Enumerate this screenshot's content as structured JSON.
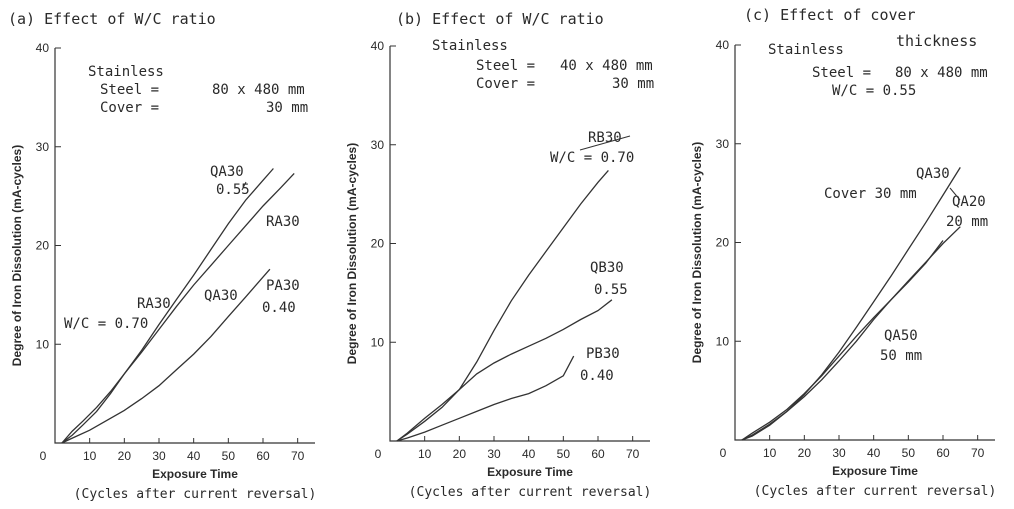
{
  "chart_data": [
    {
      "type": "line",
      "title": "(a) Effect of W/C ratio",
      "xlabel": "Exposure Time",
      "xsublabel": "(Cycles after current reversal)",
      "ylabel": "Degree of Iron Dissolution (mA-cycles)",
      "xlim": [
        0,
        75
      ],
      "ylim": [
        0,
        40
      ],
      "xticks": [
        "0",
        "10",
        "20",
        "30",
        "40",
        "50",
        "60",
        "70"
      ],
      "yticks": [
        "10",
        "20",
        "30",
        "40"
      ],
      "annotations": {
        "material": "Stainless",
        "steel_key": "Steel =",
        "steel_val": "80 x 480 mm",
        "cover_key": "Cover =",
        "cover_val": "30 mm"
      },
      "labels": {
        "qa30_top": "QA30",
        "qa30_top_val": "0.55",
        "ra30_right": "RA30",
        "ra30_left": "RA30",
        "wc_left": "W/C = 0.70",
        "qa30_mid": "QA30",
        "pa30": "PA30",
        "pa30_val": "0.40"
      },
      "series": [
        {
          "values": [
            [
              2,
              0
            ],
            [
              5,
              0.8
            ],
            [
              8,
              1.8
            ],
            [
              12,
              3.2
            ],
            [
              16,
              5.0
            ],
            [
              20,
              7.0
            ],
            [
              25,
              9.4
            ],
            [
              30,
              12.0
            ],
            [
              35,
              14.5
            ],
            [
              40,
              17.0
            ],
            [
              45,
              19.6
            ],
            [
              50,
              22.2
            ],
            [
              55,
              24.6
            ],
            [
              60,
              26.6
            ],
            [
              63,
              27.8
            ]
          ]
        },
        {
          "values": [
            [
              2,
              0
            ],
            [
              5,
              1.2
            ],
            [
              8,
              2.2
            ],
            [
              12,
              3.6
            ],
            [
              16,
              5.2
            ],
            [
              20,
              7.0
            ],
            [
              25,
              9.2
            ],
            [
              30,
              11.5
            ],
            [
              35,
              13.8
            ],
            [
              40,
              16.0
            ],
            [
              45,
              18.0
            ],
            [
              50,
              20.0
            ],
            [
              55,
              22.0
            ],
            [
              60,
              24.0
            ],
            [
              65,
              25.8
            ],
            [
              69,
              27.3
            ]
          ]
        },
        {
          "values": [
            [
              2,
              0
            ],
            [
              5,
              0.5
            ],
            [
              10,
              1.3
            ],
            [
              15,
              2.3
            ],
            [
              20,
              3.3
            ],
            [
              25,
              4.5
            ],
            [
              30,
              5.8
            ],
            [
              35,
              7.4
            ],
            [
              40,
              9.0
            ],
            [
              45,
              10.8
            ],
            [
              50,
              12.8
            ],
            [
              55,
              14.8
            ],
            [
              60,
              16.8
            ],
            [
              62,
              17.6
            ]
          ]
        }
      ]
    },
    {
      "type": "line",
      "title": "(b) Effect of W/C ratio",
      "xlabel": "Exposure Time",
      "xsublabel": "(Cycles after current reversal)",
      "ylabel": "Degree of Iron Dissolution (mA-cycles)",
      "xlim": [
        0,
        75
      ],
      "ylim": [
        0,
        40
      ],
      "xticks": [
        "0",
        "10",
        "20",
        "30",
        "40",
        "50",
        "60",
        "70"
      ],
      "yticks": [
        "10",
        "20",
        "30",
        "40"
      ],
      "annotations": {
        "material": "Stainless",
        "steel_key": "Steel =",
        "steel_val": "40 x 480 mm",
        "cover_key": "Cover =",
        "cover_val": "30 mm"
      },
      "labels": {
        "rb30": "RB30",
        "rb30_val": "W/C = 0.70",
        "qb30": "QB30",
        "qb30_val": "0.55",
        "pb30": "PB30",
        "pb30_val": "0.40"
      },
      "series": [
        {
          "values": [
            [
              2,
              0
            ],
            [
              5,
              0.7
            ],
            [
              10,
              2.0
            ],
            [
              15,
              3.4
            ],
            [
              20,
              5.2
            ],
            [
              25,
              8.0
            ],
            [
              30,
              11.2
            ],
            [
              35,
              14.2
            ],
            [
              40,
              16.8
            ],
            [
              45,
              19.2
            ],
            [
              50,
              21.6
            ],
            [
              55,
              24.0
            ],
            [
              60,
              26.2
            ],
            [
              63,
              27.4
            ]
          ]
        },
        {
          "values": [
            [
              2,
              0
            ],
            [
              5,
              0.8
            ],
            [
              10,
              2.3
            ],
            [
              15,
              3.7
            ],
            [
              20,
              5.2
            ],
            [
              25,
              6.8
            ],
            [
              30,
              7.9
            ],
            [
              35,
              8.8
            ],
            [
              40,
              9.6
            ],
            [
              45,
              10.4
            ],
            [
              50,
              11.3
            ],
            [
              55,
              12.3
            ],
            [
              60,
              13.2
            ],
            [
              64,
              14.3
            ]
          ]
        },
        {
          "values": [
            [
              2,
              0
            ],
            [
              5,
              0.3
            ],
            [
              10,
              0.9
            ],
            [
              15,
              1.6
            ],
            [
              20,
              2.3
            ],
            [
              25,
              3.0
            ],
            [
              30,
              3.7
            ],
            [
              35,
              4.3
            ],
            [
              40,
              4.8
            ],
            [
              45,
              5.6
            ],
            [
              50,
              6.6
            ],
            [
              53,
              8.6
            ]
          ]
        }
      ]
    },
    {
      "type": "line",
      "title": "(c) Effect of cover thickness",
      "title_line1": "(c) Effect of cover",
      "title_line2": "thickness",
      "xlabel": "Exposure Time",
      "xsublabel": "(Cycles after current reversal)",
      "ylabel": "Degree of Iron Dissolution (mA-cycles)",
      "xlim": [
        0,
        75
      ],
      "ylim": [
        0,
        40
      ],
      "xticks": [
        "0",
        "10",
        "20",
        "30",
        "40",
        "50",
        "60",
        "70"
      ],
      "yticks": [
        "10",
        "20",
        "30",
        "40"
      ],
      "annotations": {
        "material": "Stainless",
        "steel_key": "Steel =",
        "steel_val": "80 x 480 mm",
        "wc": "W/C = 0.55"
      },
      "labels": {
        "qa30": "QA30",
        "qa30_val": "Cover 30 mm",
        "qa20": "QA20",
        "qa20_val": "20 mm",
        "qa50": "QA50",
        "qa50_val": "50 mm"
      },
      "series": [
        {
          "values": [
            [
              2,
              0
            ],
            [
              5,
              0.4
            ],
            [
              10,
              1.5
            ],
            [
              15,
              2.9
            ],
            [
              20,
              4.6
            ],
            [
              25,
              6.6
            ],
            [
              30,
              8.9
            ],
            [
              35,
              11.4
            ],
            [
              40,
              14.0
            ],
            [
              45,
              16.6
            ],
            [
              50,
              19.3
            ],
            [
              55,
              22.0
            ],
            [
              60,
              24.8
            ],
            [
              65,
              27.6
            ]
          ]
        },
        {
          "values": [
            [
              2,
              0
            ],
            [
              5,
              0.5
            ],
            [
              10,
              1.6
            ],
            [
              15,
              2.9
            ],
            [
              20,
              4.4
            ],
            [
              25,
              6.1
            ],
            [
              30,
              8.0
            ],
            [
              35,
              10.0
            ],
            [
              40,
              12.2
            ],
            [
              45,
              14.2
            ],
            [
              50,
              16.1
            ],
            [
              55,
              18.0
            ],
            [
              60,
              19.9
            ],
            [
              65,
              21.6
            ]
          ]
        },
        {
          "values": [
            [
              2,
              0
            ],
            [
              5,
              0.7
            ],
            [
              10,
              1.8
            ],
            [
              15,
              3.1
            ],
            [
              20,
              4.7
            ],
            [
              25,
              6.5
            ],
            [
              30,
              8.5
            ],
            [
              35,
              10.5
            ],
            [
              40,
              12.4
            ],
            [
              45,
              14.2
            ],
            [
              50,
              16.0
            ],
            [
              55,
              17.9
            ],
            [
              60,
              20.2
            ]
          ]
        }
      ]
    }
  ]
}
